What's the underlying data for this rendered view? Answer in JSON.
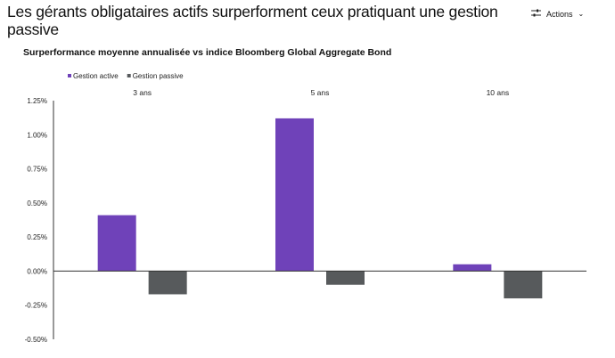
{
  "header": {
    "title": "Les gérants obligataires actifs surperforment ceux pratiquant une gestion passive",
    "actions_label": "Actions",
    "actions_icon": "sliders-icon"
  },
  "chart_data": {
    "type": "bar",
    "title": "Surperformance moyenne annualisée vs indice Bloomberg Global Aggregate Bond",
    "categories": [
      "3 ans",
      "5 ans",
      "10 ans"
    ],
    "series": [
      {
        "name": "Gestion active",
        "color": "#6f42b9",
        "values": [
          0.41,
          1.12,
          0.05
        ]
      },
      {
        "name": "Gestion passive",
        "color": "#575a5c",
        "values": [
          -0.17,
          -0.1,
          -0.2
        ]
      }
    ],
    "ylim": [
      -0.5,
      1.25
    ],
    "yticks": [
      1.25,
      1.0,
      0.75,
      0.5,
      0.25,
      0.0,
      -0.25,
      -0.5
    ],
    "ytick_labels": [
      "1.25%",
      "1.00%",
      "0.75%",
      "0.50%",
      "0.25%",
      "0.00%",
      "-0.25%",
      "-0.50%"
    ],
    "xlabel": "",
    "ylabel": "",
    "legend_position": "top-left",
    "category_labels_position": "top",
    "grid": false
  }
}
